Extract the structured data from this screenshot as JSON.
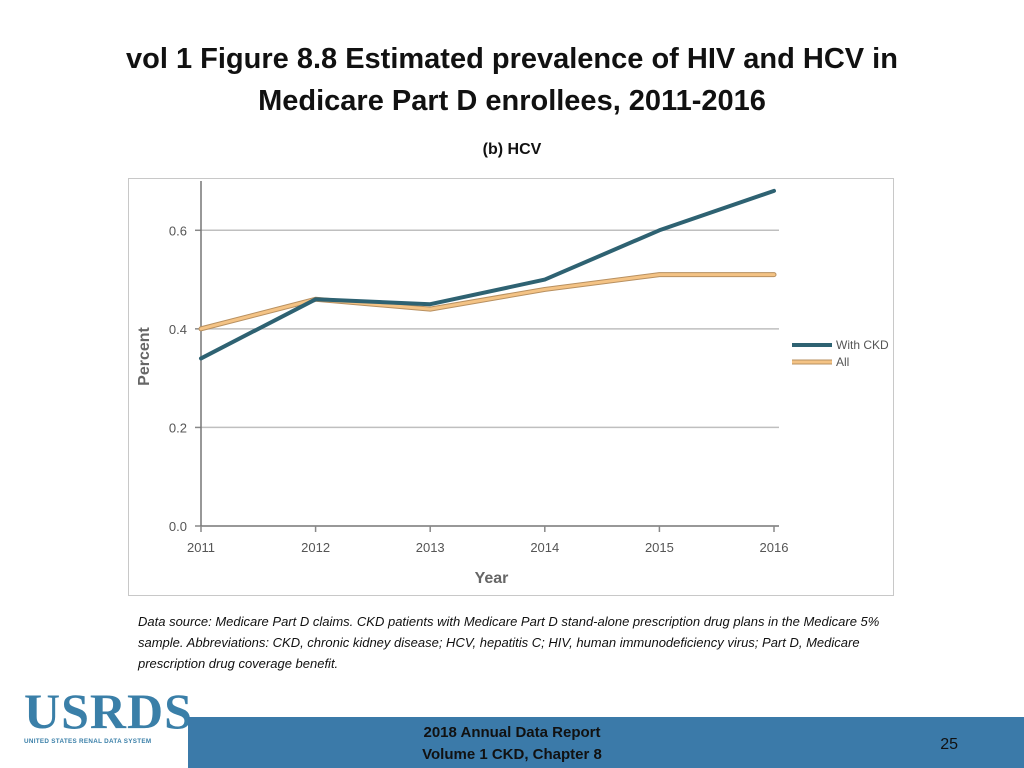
{
  "title": "vol 1 Figure 8.8 Estimated prevalence of HIV and HCV in Medicare Part D enrollees, 2011-2016",
  "subtitle": "(b) HCV",
  "chart_data": {
    "type": "line",
    "title": "",
    "xlabel": "Year",
    "ylabel": "Percent",
    "categories": [
      "2011",
      "2012",
      "2013",
      "2014",
      "2015",
      "2016"
    ],
    "y_ticks": [
      "0.0",
      "0.2",
      "0.4",
      "0.6"
    ],
    "y_tick_values": [
      0.0,
      0.2,
      0.4,
      0.6
    ],
    "ylim": [
      0,
      0.7
    ],
    "grid": true,
    "legend_position": "right",
    "series": [
      {
        "name": "With CKD",
        "color": "#2e6272",
        "values": [
          0.34,
          0.46,
          0.45,
          0.5,
          0.6,
          0.68
        ]
      },
      {
        "name": "All",
        "color": "#f4c385",
        "values": [
          0.4,
          0.46,
          0.44,
          0.48,
          0.51,
          0.51
        ]
      }
    ]
  },
  "note": "Data source: Medicare Part D claims. CKD patients with Medicare Part D stand-alone prescription drug plans in the Medicare 5% sample. Abbreviations: CKD, chronic kidney disease; HCV, hepatitis C; HIV, human immunodeficiency virus; Part D, Medicare prescription drug coverage benefit.",
  "logo": {
    "word": "USRDS",
    "tagline": "UNITED STATES RENAL DATA SYSTEM"
  },
  "footer": {
    "line1": "2018 Annual Data Report",
    "line2": "Volume 1 CKD, Chapter 8"
  },
  "page_number": "25",
  "colors": {
    "brand": "#3b7aa9",
    "grid": "#bfbfbf"
  }
}
